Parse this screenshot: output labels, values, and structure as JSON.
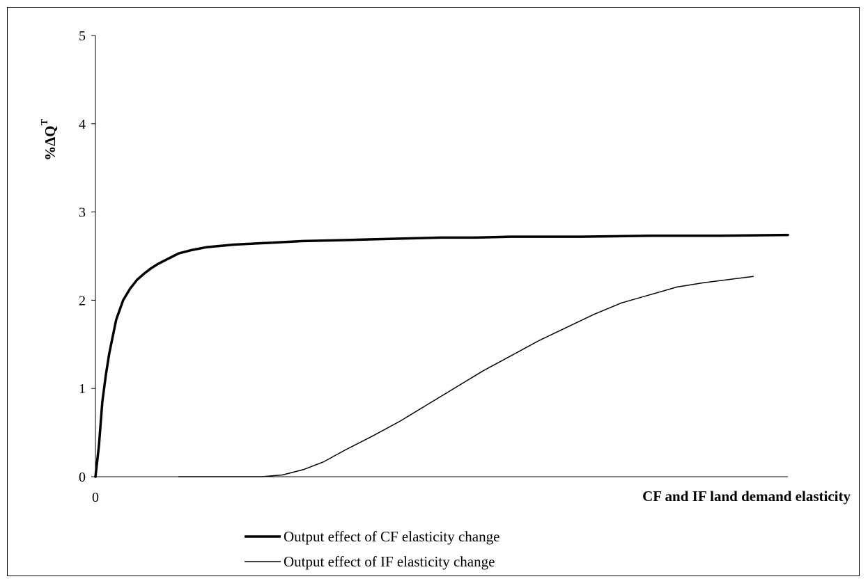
{
  "chart_data": {
    "type": "line",
    "title": "",
    "xlabel": "CF and IF land demand elasticity",
    "ylabel": "%ΔQ",
    "ylabel_superscript": "T",
    "xlim": [
      0,
      1
    ],
    "ylim": [
      0,
      5
    ],
    "x_ticks": [
      "0"
    ],
    "y_ticks": [
      0,
      1,
      2,
      3,
      4,
      5
    ],
    "grid": false,
    "legend_position": "bottom",
    "series": [
      {
        "name": "Output effect of CF elasticity change",
        "color": "#000000",
        "line": "thick",
        "x": [
          0,
          0.005,
          0.01,
          0.015,
          0.02,
          0.03,
          0.04,
          0.05,
          0.06,
          0.07,
          0.08,
          0.09,
          0.1,
          0.12,
          0.14,
          0.16,
          0.2,
          0.25,
          0.3,
          0.35,
          0.4,
          0.45,
          0.5,
          0.55,
          0.6,
          0.7,
          0.8,
          0.9,
          1.0
        ],
        "y": [
          0,
          0.35,
          0.85,
          1.15,
          1.4,
          1.78,
          2.0,
          2.13,
          2.23,
          2.3,
          2.36,
          2.41,
          2.45,
          2.53,
          2.57,
          2.6,
          2.63,
          2.65,
          2.67,
          2.68,
          2.69,
          2.7,
          2.71,
          2.71,
          2.72,
          2.72,
          2.73,
          2.73,
          2.74
        ]
      },
      {
        "name": "Output effect of IF elasticity change",
        "color": "#000000",
        "line": "thin",
        "x": [
          0.12,
          0.16,
          0.2,
          0.24,
          0.27,
          0.3,
          0.33,
          0.36,
          0.4,
          0.44,
          0.48,
          0.52,
          0.56,
          0.6,
          0.64,
          0.68,
          0.72,
          0.76,
          0.8,
          0.84,
          0.88,
          0.92,
          0.95
        ],
        "y": [
          0,
          0,
          0,
          0,
          0.02,
          0.08,
          0.17,
          0.3,
          0.46,
          0.63,
          0.82,
          1.01,
          1.2,
          1.37,
          1.54,
          1.69,
          1.84,
          1.97,
          2.06,
          2.15,
          2.2,
          2.24,
          2.27
        ]
      }
    ]
  }
}
